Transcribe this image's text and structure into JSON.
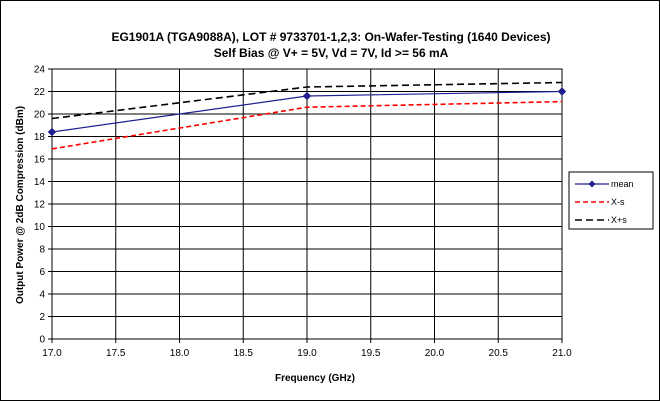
{
  "chart_data": {
    "type": "line",
    "title": "EG1901A (TGA9088A), LOT # 9733701-1,2,3:  On-Wafer-Testing (1640 Devices)",
    "subtitle": "Self Bias @ V+ = 5V, Vd = 7V, Id >= 56 mA",
    "xlabel": "Frequency (GHz)",
    "ylabel": "Output Power @ 2dB Compression (dBm)",
    "xlim": [
      17.0,
      21.0
    ],
    "ylim": [
      0,
      24
    ],
    "x_ticks": [
      "17.0",
      "17.5",
      "18.0",
      "18.5",
      "19.0",
      "19.5",
      "20.0",
      "20.5",
      "21.0"
    ],
    "y_ticks": [
      "0",
      "2",
      "4",
      "6",
      "8",
      "10",
      "12",
      "14",
      "16",
      "18",
      "20",
      "22",
      "24"
    ],
    "grid": true,
    "legend_position": "right",
    "x": [
      17.0,
      19.0,
      21.0
    ],
    "series": [
      {
        "name": "mean",
        "values": [
          18.4,
          21.6,
          22.0
        ],
        "color": "#1f1f8f",
        "style": "solid",
        "markers": true
      },
      {
        "name": "X-s",
        "values": [
          16.9,
          20.6,
          21.1
        ],
        "color": "#ff0000",
        "style": "dashed",
        "markers": false
      },
      {
        "name": "X+s",
        "values": [
          19.6,
          22.4,
          22.8
        ],
        "color": "#000000",
        "style": "dashed",
        "markers": false
      }
    ]
  }
}
